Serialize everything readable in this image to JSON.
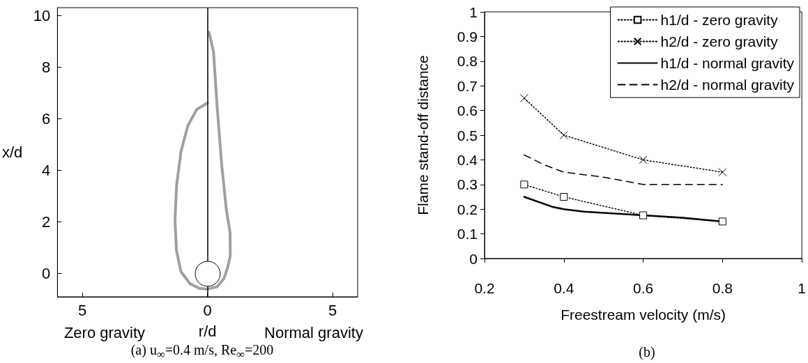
{
  "chart_data": [
    {
      "type": "line",
      "xlabel": "r/d",
      "ylabel": "x/d",
      "annotations": [
        "Zero gravity",
        "Normal gravity",
        "(a) u$_{∞}$=0.4 m/s, Re$_{∞}$=200"
      ],
      "xlim": [
        -6,
        6
      ],
      "xticks": [
        {
          "value": -5,
          "label": "5"
        },
        0,
        5
      ],
      "ylim": [
        -0.9,
        10.3
      ],
      "yticks": [
        0,
        2,
        4,
        6,
        8,
        10
      ],
      "series": [
        {
          "color": "#a0a0a0",
          "x": [
            0,
            -0.43,
            -0.79,
            -1.06,
            -1.24,
            -1.3,
            -1.24,
            -1.06,
            -0.7,
            -0.34,
            0,
            0.38,
            0.65,
            0.81,
            0.91,
            0.9,
            0.75,
            0.56,
            0.38,
            0.24,
            0.06
          ],
          "values": [
            6.61,
            6.36,
            5.72,
            4.73,
            3.39,
            2.04,
            0.88,
            0.07,
            -0.39,
            -0.57,
            -0.6,
            -0.51,
            -0.2,
            0.25,
            0.7,
            1.59,
            2.49,
            4.28,
            6.52,
            8.58,
            9.35
          ]
        }
      ],
      "ref_lines": [
        {
          "axis": "x",
          "value": 0,
          "color": "#000000"
        }
      ],
      "marker": "none",
      "line_style": "solid",
      "grid": false,
      "legend": false
    },
    {
      "type": "line",
      "xlabel": "Freestream velocity (m/s)",
      "ylabel": "Flame stand-off distance",
      "annotations": [
        "(b)"
      ],
      "xlim": [
        0.2,
        1
      ],
      "xticks": [
        0.2,
        0.4,
        0.6,
        0.8,
        1
      ],
      "ylim": [
        0,
        1
      ],
      "yticks": [
        0,
        0.1,
        0.2,
        0.3,
        0.4,
        0.5,
        0.6,
        0.7,
        0.8,
        0.9,
        1
      ],
      "series": [
        {
          "name": "h1/d - zero gravity",
          "color": "#000000",
          "marker": "square",
          "line_style": "dotted",
          "x": [
            0.3,
            0.4,
            0.6,
            0.8
          ],
          "values": [
            0.3,
            0.25,
            0.175,
            0.15
          ]
        },
        {
          "name": "h2/d - zero gravity",
          "color": "#000000",
          "marker": "cross",
          "line_style": "dotted",
          "x": [
            0.3,
            0.4,
            0.6,
            0.8
          ],
          "values": [
            0.65,
            0.5,
            0.4,
            0.35
          ]
        },
        {
          "name": "h1/d - normal gravity",
          "color": "#000000",
          "marker": "none",
          "line_style": "solid",
          "x": [
            0.3,
            0.37,
            0.4,
            0.45,
            0.5,
            0.6,
            0.7,
            0.8
          ],
          "values": [
            0.25,
            0.21,
            0.2,
            0.19,
            0.185,
            0.175,
            0.165,
            0.15
          ]
        },
        {
          "name": "h2/d - normal gravity",
          "color": "#000000",
          "marker": "none",
          "line_style": "dashed",
          "x": [
            0.3,
            0.35,
            0.4,
            0.5,
            0.6,
            0.7,
            0.8
          ],
          "values": [
            0.42,
            0.38,
            0.35,
            0.33,
            0.3,
            0.3,
            0.3
          ]
        }
      ],
      "grid": false,
      "legend": "top right"
    }
  ]
}
